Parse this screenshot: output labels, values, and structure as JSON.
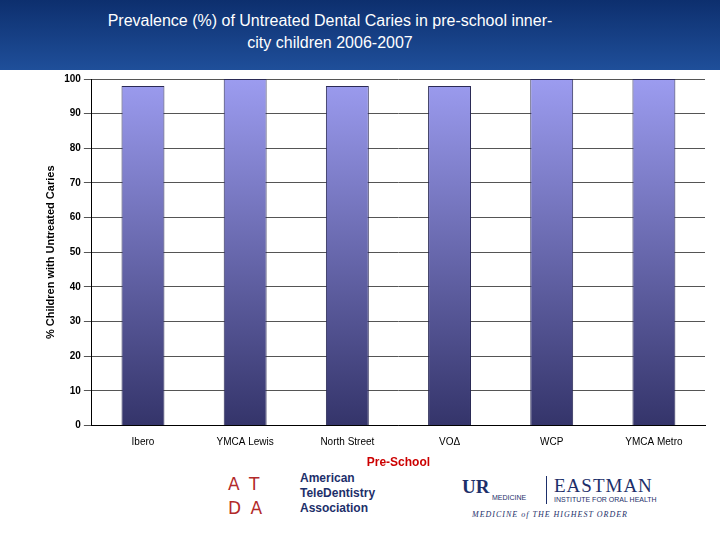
{
  "chart_data": {
    "type": "bar",
    "title": "Prevalence (%) of Untreated Dental Caries in pre-school inner-city children 2006-2007",
    "x_label": "Pre-School",
    "y_label": "% Children with Untreated Caries",
    "categories": [
      "Ibero",
      "YMCA Lewis",
      "North Street",
      "VOΔ",
      "WCP",
      "YMCA Metro"
    ],
    "values": [
      98,
      100,
      98,
      98,
      100,
      100
    ],
    "color": "#9c9cf0",
    "ylim": [
      0,
      100
    ],
    "yticks": [
      0,
      10,
      20,
      30,
      40,
      50,
      60,
      70,
      80,
      90,
      100
    ],
    "grid": true
  },
  "logos": {
    "atda_mark": [
      "A T",
      "D A"
    ],
    "atda_name": [
      "American",
      "TeleDentistry",
      "Association"
    ],
    "ur": [
      "UR",
      "MEDICINE"
    ],
    "eastman": [
      "EASTMAN",
      "INSTITUTE FOR ORAL HEALTH"
    ],
    "tagline": "MEDICINE of THE HIGHEST ORDER"
  }
}
